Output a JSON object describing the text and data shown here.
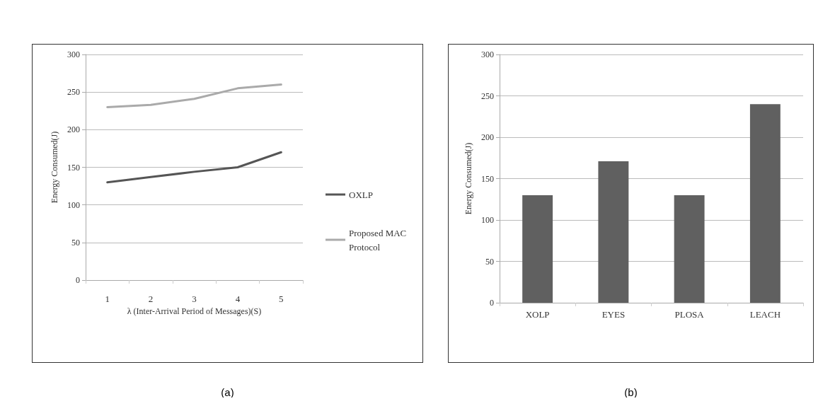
{
  "chart_data": [
    {
      "type": "line",
      "xlabel": "λ (Inter-Arrival Period of Messages)(S)",
      "ylabel": "Energy Consumed(J)",
      "categories": [
        "1",
        "2",
        "3",
        "4",
        "5"
      ],
      "series": [
        {
          "name": "OXLP",
          "color": "#555555",
          "values": [
            130,
            137,
            144,
            150,
            170
          ]
        },
        {
          "name": "Proposed MAC Protocol",
          "color": "#aaaaaa",
          "values": [
            230,
            233,
            241,
            255,
            260
          ]
        }
      ],
      "ylim": [
        0,
        300
      ],
      "yticks": [
        0,
        50,
        100,
        150,
        200,
        250,
        300
      ],
      "grid": "y",
      "legend": "right",
      "marker": "none",
      "line_style": "solid",
      "annotations": [
        "(a)"
      ]
    },
    {
      "type": "bar",
      "ylabel": "Energy Consumed(J)",
      "categories": [
        "XOLP",
        "EYES",
        "PLOSA",
        "LEACH"
      ],
      "values": [
        130,
        171,
        130,
        240
      ],
      "color": "#606060",
      "ylim": [
        0,
        300
      ],
      "yticks": [
        0,
        50,
        100,
        150,
        200,
        250,
        300
      ],
      "grid": "y",
      "annotations": [
        "(b)"
      ]
    }
  ]
}
